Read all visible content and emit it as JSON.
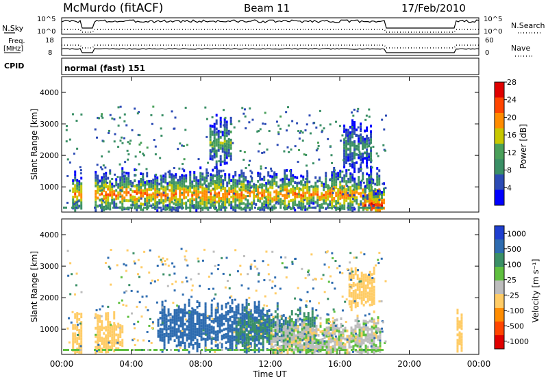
{
  "header": {
    "station": "McMurdo (fitACF)",
    "beam": "Beam 11",
    "date": "17/Feb/2010"
  },
  "strip_labels": {
    "nsky": "N.Sky",
    "nsky_ticks": [
      "10^5",
      "10^0"
    ],
    "nsearch": "N.Search",
    "nsearch_ticks": [
      "10^5",
      "10^0"
    ],
    "freq": "Freq.",
    "freq_unit": "[MHz]",
    "freq_ticks": [
      "18",
      "8"
    ],
    "nave": "Nave",
    "nave_ticks": [
      "60",
      "0"
    ],
    "cpid": "CPID",
    "cpid_value": "normal (fast) 151"
  },
  "colors": {
    "power_scale": [
      "#0000ff",
      "#2c4bb5",
      "#3a8f66",
      "#4aa05a",
      "#c8c800",
      "#ff8c00",
      "#ff4500",
      "#e00000"
    ],
    "velocity_scale": [
      "#1f3fd0",
      "#2e6cb0",
      "#3a8f66",
      "#5fbf3f",
      "#bdbdbd",
      "#ffcc66",
      "#ff8c00",
      "#ff4500",
      "#e00000"
    ]
  },
  "chart_data": [
    {
      "type": "heatmap",
      "name": "power",
      "xlabel": "",
      "ylabel": "Slant Range [km]",
      "xlim": [
        "00:00",
        "24:00"
      ],
      "ylim": [
        200,
        4500
      ],
      "yticks": [
        "1000",
        "2000",
        "3000",
        "4000"
      ],
      "colorbar": {
        "label": "Power [dB]",
        "ticks": [
          "4",
          "8",
          "12",
          "16",
          "20",
          "24",
          "28"
        ],
        "range": [
          0,
          30
        ]
      },
      "data_gaps_ut": [
        [
          "01:06",
          "01:50"
        ],
        [
          "18:36",
          "22:40"
        ]
      ],
      "features": [
        {
          "ut_start": 0.6,
          "ut_end": 18.3,
          "range_km": 800,
          "power_db": 22
        },
        {
          "ut_start": 8.5,
          "ut_end": 9.8,
          "range_km": 2450,
          "power_db": 14
        },
        {
          "ut_start": 16.2,
          "ut_end": 17.8,
          "range_km": 2300,
          "power_db": 10
        },
        {
          "ut_start": 17.3,
          "ut_end": 18.5,
          "range_km": 450,
          "power_db": 26
        }
      ]
    },
    {
      "type": "heatmap",
      "name": "velocity",
      "xlabel": "Time UT",
      "ylabel": "Slant Range [km]",
      "xlim": [
        "00:00",
        "24:00"
      ],
      "ylim": [
        200,
        4500
      ],
      "xticks": [
        "00:00",
        "04:00",
        "08:00",
        "12:00",
        "16:00",
        "20:00",
        "00:00"
      ],
      "yticks": [
        "1000",
        "2000",
        "3000",
        "4000"
      ],
      "colorbar": {
        "label": "Velocity [m s⁻¹]",
        "ticks": [
          "1000",
          "500",
          "100",
          "25",
          "-25",
          "-100",
          "-500",
          "-1000"
        ]
      },
      "data_gaps_ut": [
        [
          "01:06",
          "01:50"
        ],
        [
          "18:36",
          "22:40"
        ]
      ],
      "features": [
        {
          "ut_start": 0.6,
          "ut_end": 3.5,
          "range_km": 800,
          "velocity_ms": -300
        },
        {
          "ut_start": 5.5,
          "ut_end": 12.0,
          "range_km": 1100,
          "velocity_ms": 300
        },
        {
          "ut_start": 10.0,
          "ut_end": 14.5,
          "range_km": 1000,
          "velocity_ms": 80
        },
        {
          "ut_start": 12.0,
          "ut_end": 18.3,
          "range_km": 600,
          "velocity_ms": -60
        },
        {
          "ut_start": 16.5,
          "ut_end": 18.0,
          "range_km": 2300,
          "velocity_ms": -200
        },
        {
          "ut_start": 22.6,
          "ut_end": 23.0,
          "range_km": 800,
          "velocity_ms": -400
        }
      ]
    }
  ]
}
